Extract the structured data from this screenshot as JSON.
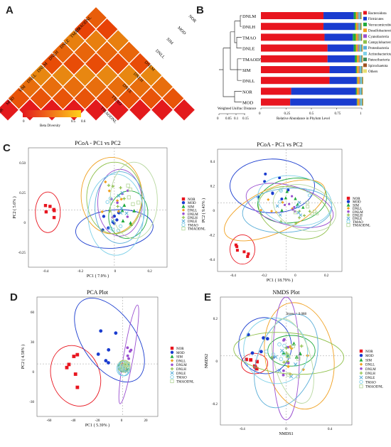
{
  "figure": {
    "panels": {
      "A": "A",
      "B": "B",
      "C": "C",
      "D": "D",
      "E": "E"
    },
    "colors": {
      "NOR": "#e8151f",
      "MOD": "#1a3ccf",
      "SIM": "#1faa3b",
      "DNLL": "#f0a020",
      "DNLM": "#9a4fd0",
      "DNLH": "#8fc04a",
      "DNLE": "#5aaed8",
      "TMAO": "#7ed0e8",
      "TMAODNL": "#b8d8a0"
    }
  },
  "chart_data": [
    {
      "id": "A",
      "type": "heatmap",
      "title": "",
      "row_labels": [
        "NOR",
        "MOD",
        "SIM",
        "DNLL",
        "DNLM",
        "DNLH",
        "DNLE",
        "TMAO",
        "TMAODNL"
      ],
      "col_labels": [
        "NOR",
        "MOD",
        "SIM",
        "DNLL",
        "DNLM",
        "DNLH",
        "DNLE",
        "TMAO",
        "TMAODNL"
      ],
      "visible_cells": [
        {
          "row": "NOR",
          "col": "MOD",
          "value": "0.292",
          "sub": "(0.251)"
        },
        {
          "row": "NOR",
          "col": "SIM",
          "value": "0.357",
          "sub": "(0.431)"
        },
        {
          "row": "MOD",
          "col": "SIM",
          "value": "0.452",
          "sub": "(0.473)"
        },
        {
          "row": "DNLL",
          "col": "DNLM",
          "value": "0.506",
          "sub": "(0.525)"
        },
        {
          "row": "DNLH",
          "col": "DNLE",
          "value": "0.477",
          "sub": "(0.541)"
        },
        {
          "row": "TMAO",
          "col": "TMAODNL",
          "value": "0.556",
          "sub": "(0.541)"
        }
      ],
      "colorbar": {
        "min": 0,
        "max": 0.6,
        "ticks": [
          "0",
          "0.5",
          "0.6"
        ],
        "label": "Beta Diversity"
      }
    },
    {
      "id": "B",
      "type": "bar",
      "groups": [
        "DNLM",
        "DNLH",
        "TMAO",
        "DNLE",
        "TMAODNL",
        "SIM",
        "DNLL",
        "NOR",
        "MOD"
      ],
      "xlabel": "Relative Abundance in Phylum Level",
      "xticks": [
        "0",
        "0.25",
        "0.5",
        "0.75",
        "1"
      ],
      "tree_axis_label": "Weighted Unifrac Distance",
      "tree_ticks": [
        "0",
        "0.05",
        "0.1",
        "0.15"
      ],
      "legend": [
        {
          "name": "Bacteroidota",
          "color": "#e8151f"
        },
        {
          "name": "Firmicutes",
          "color": "#1a3ccf"
        },
        {
          "name": "Verrucomicrobiota",
          "color": "#1faa3b"
        },
        {
          "name": "Desulfobacterota",
          "color": "#f0a020"
        },
        {
          "name": "Cyanobacteria",
          "color": "#9a4fd0"
        },
        {
          "name": "Campylobacterota",
          "color": "#8fc04a"
        },
        {
          "name": "Proteobacteria",
          "color": "#5aaed8"
        },
        {
          "name": "Actinobacteriota",
          "color": "#7ed0e8"
        },
        {
          "name": "Patescibacteria",
          "color": "#3a8a5a"
        },
        {
          "name": "Spirochaetota",
          "color": "#a05020"
        },
        {
          "name": "Others",
          "color": "#e8e070"
        }
      ],
      "series_values": {
        "DNLM": [
          0.62,
          0.3,
          0.02,
          0.02,
          0.005,
          0.005,
          0.01,
          0.005,
          0.005,
          0.005,
          0.005
        ],
        "DNLH": [
          0.62,
          0.31,
          0.01,
          0.02,
          0.005,
          0.005,
          0.01,
          0.005,
          0.005,
          0.005,
          0.005
        ],
        "TMAO": [
          0.63,
          0.28,
          0.03,
          0.02,
          0.005,
          0.01,
          0.01,
          0.005,
          0.005,
          0.005,
          0.005
        ],
        "DNLE": [
          0.66,
          0.26,
          0.02,
          0.02,
          0.01,
          0.01,
          0.01,
          0.005,
          0.005,
          0.005,
          0.005
        ],
        "TMAODNL": [
          0.66,
          0.27,
          0.02,
          0.02,
          0.005,
          0.005,
          0.01,
          0.005,
          0.005,
          0.005,
          0.005
        ],
        "SIM": [
          0.68,
          0.26,
          0.01,
          0.02,
          0.005,
          0.005,
          0.01,
          0.005,
          0.005,
          0.005,
          0.005
        ],
        "DNLL": [
          0.68,
          0.27,
          0.005,
          0.02,
          0.005,
          0.005,
          0.01,
          0.005,
          0.005,
          0.005,
          0.005
        ],
        "NOR": [
          0.3,
          0.64,
          0.01,
          0.02,
          0.005,
          0.005,
          0.01,
          0.005,
          0.005,
          0.005,
          0.005
        ],
        "MOD": [
          0.29,
          0.66,
          0.005,
          0.02,
          0.005,
          0.005,
          0.01,
          0.005,
          0.005,
          0.005,
          0.005
        ]
      }
    },
    {
      "id": "C1",
      "type": "scatter",
      "title": "PCoA - PC1 vs PC2",
      "xlabel": "PC1 ( 7.9% )",
      "ylabel": "PC2 ( 5.6% )",
      "xticks": [
        "-0.4",
        "-0.2",
        "0",
        "0.2"
      ],
      "yticks": [
        "0.50",
        "0.25",
        "0",
        "-0.25"
      ],
      "legend": [
        "NOR",
        "MOD",
        "SIM",
        "DNLL",
        "DNLM",
        "DNLH",
        "DNLE",
        "TMAO",
        "TMAODNL"
      ]
    },
    {
      "id": "C2",
      "type": "scatter",
      "title": "PCoA - PC1 vs PC2",
      "xlabel": "PC1 ( 18.79% )",
      "ylabel": "PC2 ( 9.43% )",
      "xticks": [
        "-0.4",
        "-0.2",
        "0",
        "0.2"
      ],
      "yticks": [
        "0.4",
        "0.2",
        "0",
        "-0.2",
        "-0.4"
      ],
      "legend": [
        "NOR",
        "MOD",
        "SIM",
        "DNLL",
        "DNLM",
        "DNLH",
        "DNLE",
        "TMAO",
        "TMAODNL"
      ]
    },
    {
      "id": "D",
      "type": "scatter",
      "title": "PCA Plot",
      "xlabel": "PC1 ( 5.39% )",
      "ylabel": "PC2 ( 4.58% )",
      "xticks": [
        "-60",
        "-40",
        "-20",
        "0",
        "20"
      ],
      "yticks": [
        "60",
        "30",
        "0",
        "-30"
      ],
      "legend": [
        "NOR",
        "MOD",
        "SIM",
        "DNLL",
        "DNLM",
        "DNLH",
        "DNLE",
        "TMAO",
        "TMAODNL"
      ]
    },
    {
      "id": "E",
      "type": "scatter",
      "title": "NMDS Plot",
      "annotation": "Stress = 0.088",
      "xlabel": "NMDS1",
      "ylabel": "NMDS2",
      "xticks": [
        "-0.4",
        "0",
        "0.4"
      ],
      "yticks": [
        "0.2",
        "0",
        "-0.2"
      ],
      "legend": [
        "NOR",
        "MOD",
        "SIM",
        "DNLL",
        "DNLM",
        "DNLH",
        "DNLE",
        "TMAO",
        "TMAODNL"
      ]
    }
  ]
}
